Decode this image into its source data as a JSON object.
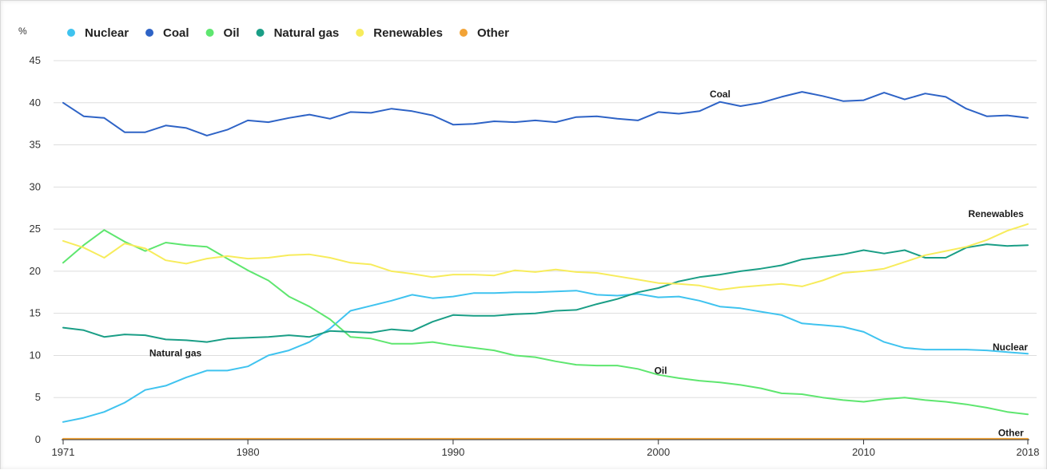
{
  "chart_data": {
    "type": "line",
    "title": "",
    "ylabel": "%",
    "xlabel": "",
    "ylim": [
      0,
      45
    ],
    "xlim": [
      1971,
      2018
    ],
    "yticks": [
      0,
      5,
      10,
      15,
      20,
      25,
      30,
      35,
      40,
      45
    ],
    "xticks": [
      1971,
      1980,
      1990,
      2000,
      2010,
      2018
    ],
    "grid": "horizontal",
    "legend_position": "top-left",
    "x": [
      1971,
      1972,
      1973,
      1974,
      1975,
      1976,
      1977,
      1978,
      1979,
      1980,
      1981,
      1982,
      1983,
      1984,
      1985,
      1986,
      1987,
      1988,
      1989,
      1990,
      1991,
      1992,
      1993,
      1994,
      1995,
      1996,
      1997,
      1998,
      1999,
      2000,
      2001,
      2002,
      2003,
      2004,
      2005,
      2006,
      2007,
      2008,
      2009,
      2010,
      2011,
      2012,
      2013,
      2014,
      2015,
      2016,
      2017,
      2018
    ],
    "series": [
      {
        "name": "Nuclear",
        "color": "#3fc3ef",
        "values": [
          2.1,
          2.6,
          3.3,
          4.4,
          5.9,
          6.4,
          7.4,
          8.2,
          8.2,
          8.7,
          10.0,
          10.6,
          11.6,
          13.2,
          15.3,
          15.9,
          16.5,
          17.2,
          16.8,
          17.0,
          17.4,
          17.4,
          17.5,
          17.5,
          17.6,
          17.7,
          17.2,
          17.1,
          17.3,
          16.9,
          17.0,
          16.5,
          15.8,
          15.6,
          15.2,
          14.8,
          13.8,
          13.6,
          13.4,
          12.8,
          11.6,
          10.9,
          10.7,
          10.7,
          10.7,
          10.6,
          10.4,
          10.2
        ]
      },
      {
        "name": "Coal",
        "color": "#2e63c6",
        "values": [
          40.0,
          38.4,
          38.2,
          36.5,
          36.5,
          37.3,
          37.0,
          36.1,
          36.8,
          37.9,
          37.7,
          38.2,
          38.6,
          38.1,
          38.9,
          38.8,
          39.3,
          39.0,
          38.5,
          37.4,
          37.5,
          37.8,
          37.7,
          37.9,
          37.7,
          38.3,
          38.4,
          38.1,
          37.9,
          38.9,
          38.7,
          39.0,
          40.1,
          39.6,
          40.0,
          40.7,
          41.3,
          40.8,
          40.2,
          40.3,
          41.2,
          40.4,
          41.1,
          40.7,
          39.3,
          38.4,
          38.5,
          38.2
        ]
      },
      {
        "name": "Oil",
        "color": "#5ee66f",
        "values": [
          21.0,
          23.1,
          24.9,
          23.5,
          22.4,
          23.4,
          23.1,
          22.9,
          21.5,
          20.1,
          18.9,
          17.0,
          15.8,
          14.3,
          12.2,
          12.0,
          11.4,
          11.4,
          11.6,
          11.2,
          10.9,
          10.6,
          10.0,
          9.8,
          9.3,
          8.9,
          8.8,
          8.8,
          8.4,
          7.7,
          7.3,
          7.0,
          6.8,
          6.5,
          6.1,
          5.5,
          5.4,
          5.0,
          4.7,
          4.5,
          4.8,
          5.0,
          4.7,
          4.5,
          4.2,
          3.8,
          3.3,
          3.0
        ]
      },
      {
        "name": "Natural gas",
        "color": "#1a9e86",
        "values": [
          13.3,
          13.0,
          12.2,
          12.5,
          12.4,
          11.9,
          11.8,
          11.6,
          12.0,
          12.1,
          12.2,
          12.4,
          12.2,
          12.9,
          12.8,
          12.7,
          13.1,
          12.9,
          14.0,
          14.8,
          14.7,
          14.7,
          14.9,
          15.0,
          15.3,
          15.4,
          16.1,
          16.7,
          17.5,
          18.0,
          18.8,
          19.3,
          19.6,
          20.0,
          20.3,
          20.7,
          21.4,
          21.7,
          22.0,
          22.5,
          22.1,
          22.5,
          21.6,
          21.6,
          22.8,
          23.2,
          23.0,
          23.1
        ]
      },
      {
        "name": "Renewables",
        "color": "#f7ec5c",
        "values": [
          23.6,
          22.8,
          21.6,
          23.3,
          22.7,
          21.3,
          20.9,
          21.5,
          21.8,
          21.5,
          21.6,
          21.9,
          22.0,
          21.6,
          21.0,
          20.8,
          20.0,
          19.7,
          19.3,
          19.6,
          19.6,
          19.5,
          20.1,
          19.9,
          20.2,
          19.9,
          19.8,
          19.4,
          19.0,
          18.6,
          18.5,
          18.3,
          17.8,
          18.1,
          18.3,
          18.5,
          18.2,
          18.9,
          19.8,
          20.0,
          20.3,
          21.1,
          21.9,
          22.4,
          22.9,
          23.7,
          24.8,
          25.6
        ]
      },
      {
        "name": "Other",
        "color": "#f2a336",
        "values": [
          0.1,
          0.1,
          0.1,
          0.1,
          0.1,
          0.1,
          0.1,
          0.1,
          0.1,
          0.1,
          0.1,
          0.1,
          0.1,
          0.1,
          0.1,
          0.1,
          0.1,
          0.1,
          0.1,
          0.1,
          0.1,
          0.1,
          0.1,
          0.1,
          0.1,
          0.1,
          0.1,
          0.1,
          0.1,
          0.1,
          0.1,
          0.1,
          0.1,
          0.1,
          0.1,
          0.1,
          0.1,
          0.1,
          0.1,
          0.1,
          0.1,
          0.1,
          0.1,
          0.1,
          0.1,
          0.1,
          0.1,
          0.1
        ]
      }
    ],
    "annotations": [
      {
        "text": "Coal",
        "x": 2002.5,
        "y": 41.0
      },
      {
        "text": "Renewables",
        "x": 2017.8,
        "y": 26.8
      },
      {
        "text": "Natural gas",
        "x": 1975.2,
        "y": 10.3
      },
      {
        "text": "Nuclear",
        "x": 2018.0,
        "y": 11.0
      },
      {
        "text": "Oil",
        "x": 1999.8,
        "y": 8.2
      },
      {
        "text": "Other",
        "x": 2017.8,
        "y": 0.8
      }
    ]
  }
}
